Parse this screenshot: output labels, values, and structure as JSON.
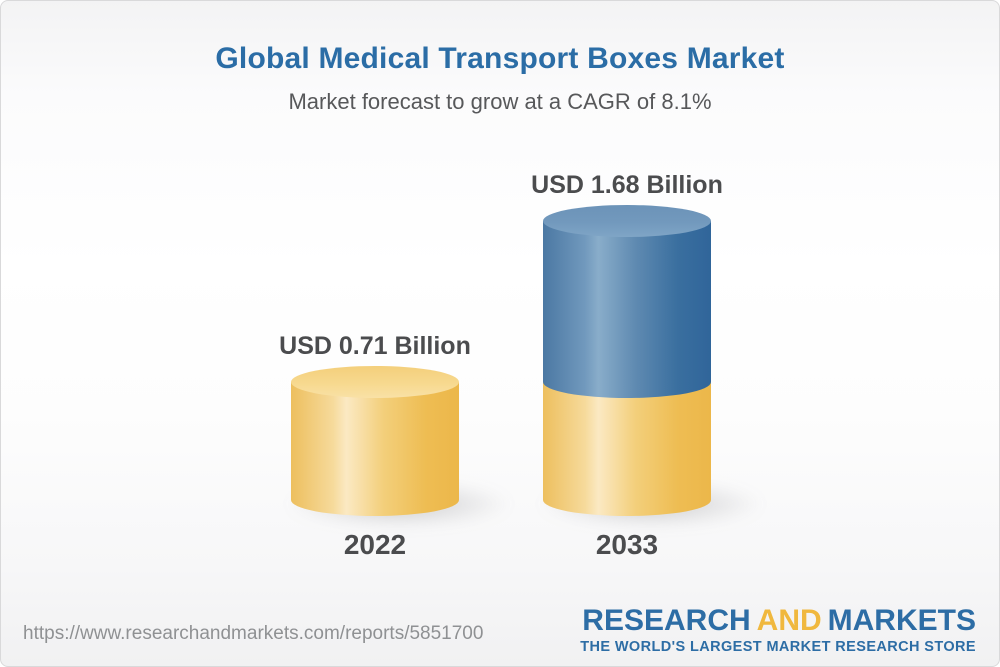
{
  "chart_data": {
    "type": "bar",
    "variant": "3d-cylinder-stacked",
    "title": "Global Medical Transport Boxes Market",
    "subtitle": "Market forecast to grow at a CAGR of 8.1%",
    "cagr_percent": 8.1,
    "unit": "USD Billion",
    "categories": [
      "2022",
      "2033"
    ],
    "values": [
      0.71,
      1.68
    ],
    "value_labels": [
      "USD 0.71 Billion",
      "USD 1.68 Billion"
    ],
    "overlay_base_value": 0.71,
    "ylim": [
      0,
      1.8
    ],
    "grid": false,
    "legend": false,
    "colors": {
      "base_segment": "#f2c566",
      "growth_segment": "#4a79a5",
      "title": "#2b6da6",
      "label_text": "#4b4c4e"
    }
  },
  "footer": {
    "url": "https://www.researchandmarkets.com/reports/5851700",
    "brand": {
      "word1": "RESEARCH",
      "word2": "AND",
      "word3": "MARKETS",
      "tagline": "THE WORLD'S LARGEST MARKET RESEARCH STORE",
      "blue": "#2d6da5",
      "gold": "#f0b83e"
    }
  }
}
